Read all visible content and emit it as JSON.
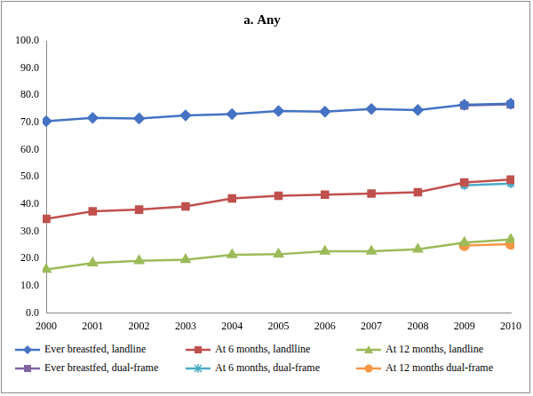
{
  "chart_data": {
    "type": "line",
    "title": "a. Any",
    "categories": [
      "2000",
      "2001",
      "2002",
      "2003",
      "2004",
      "2005",
      "2006",
      "2007",
      "2008",
      "2009",
      "2010"
    ],
    "series": [
      {
        "name": "Ever breastfed, landline",
        "color": "#4472c4",
        "marker": "diamond",
        "values": [
          70.5,
          71.7,
          71.5,
          72.6,
          73.1,
          74.2,
          74.0,
          75.0,
          74.6,
          76.5,
          76.9
        ]
      },
      {
        "name": "At 6 months, landlline",
        "color": "#c0504d",
        "marker": "square",
        "values": [
          34.6,
          37.4,
          38.0,
          39.2,
          42.1,
          43.1,
          43.5,
          43.9,
          44.4,
          48.0,
          49.0
        ]
      },
      {
        "name": "At 12 months, landline",
        "color": "#9bbb59",
        "marker": "triangle",
        "values": [
          16.0,
          18.4,
          19.2,
          19.6,
          21.4,
          21.6,
          22.7,
          22.7,
          23.4,
          25.9,
          27.0
        ]
      },
      {
        "name": "Ever breastfed, dual-frame",
        "color": "#8064a2",
        "marker": "square",
        "values": [
          null,
          null,
          null,
          null,
          null,
          null,
          null,
          null,
          null,
          76.3,
          76.7
        ]
      },
      {
        "name": "At 6 months, dual-frame",
        "color": "#4bacc6",
        "marker": "star",
        "values": [
          null,
          null,
          null,
          null,
          null,
          null,
          null,
          null,
          null,
          46.9,
          47.6
        ]
      },
      {
        "name": "At 12 months dual-frame",
        "color": "#f79646",
        "marker": "circle",
        "values": [
          null,
          null,
          null,
          null,
          null,
          null,
          null,
          null,
          null,
          24.8,
          25.3
        ]
      }
    ],
    "ylim": [
      0,
      100
    ],
    "yticks": [
      {
        "value": 0,
        "label": "0.0"
      },
      {
        "value": 10,
        "label": "10.0"
      },
      {
        "value": 20,
        "label": "20.0"
      },
      {
        "value": 30,
        "label": "30.0"
      },
      {
        "value": 40,
        "label": "40.0"
      },
      {
        "value": 50,
        "label": "50.0"
      },
      {
        "value": 60,
        "label": "60.0"
      },
      {
        "value": 70,
        "label": "70.0"
      },
      {
        "value": 80,
        "label": "80.0"
      },
      {
        "value": 90,
        "label": "90.0"
      },
      {
        "value": 100,
        "label": "100.0"
      }
    ],
    "grid": false,
    "legend": "bottom"
  }
}
